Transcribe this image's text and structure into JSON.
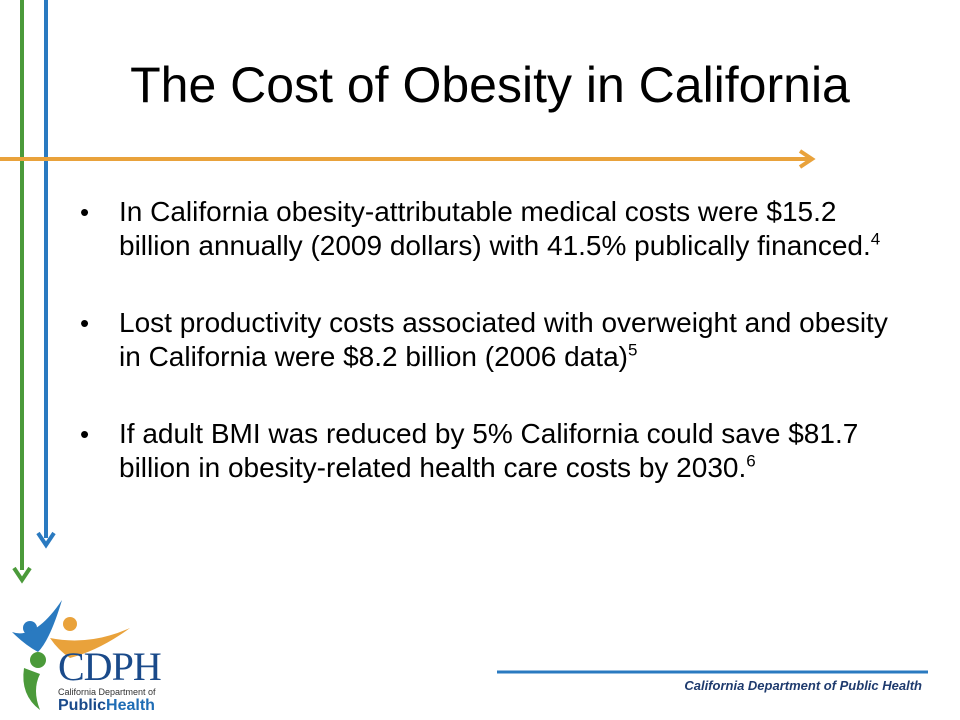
{
  "slide": {
    "title": "The Cost of Obesity in California",
    "bullets": [
      {
        "text": "In California obesity-attributable medical costs were $15.2 billion annually (2009 dollars) with 41.5% publically financed.",
        "ref": "4"
      },
      {
        "text": "Lost productivity costs associated with overweight and obesity in California were $8.2 billion (2006 data)",
        "ref": "5"
      },
      {
        "text": "If adult BMI was reduced by 5% California could save $81.7 billion in obesity-related health care costs by 2030.",
        "ref": "6"
      }
    ],
    "bullet_marker": "•"
  },
  "footer": {
    "org_name": "California Department of Public Health"
  },
  "logo": {
    "acronym": "CDPH",
    "line1": "California Department of",
    "line2_a": "Public",
    "line2_b": "Health"
  },
  "colors": {
    "green_line": "#4b9a3a",
    "blue_line": "#2a7ac0",
    "orange_line": "#e9a23b",
    "footer_line": "#2a7ac0"
  }
}
